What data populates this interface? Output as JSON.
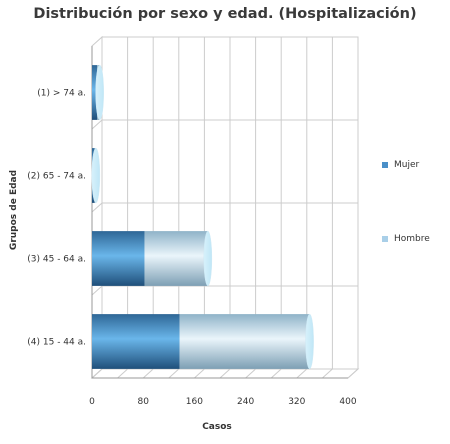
{
  "chart_data": {
    "type": "bar",
    "orientation": "horizontal",
    "stacked": true,
    "style": "3d-cylinder",
    "title": "Distribución por sexo y edad. (Hospitalización)",
    "xlabel": "Casos",
    "ylabel": "Grupos de Edad",
    "categories": [
      "(1) > 74 a.",
      "(2) 65 - 74 a.",
      "(3) 45 - 64 a.",
      "(4) 15 - 44 a."
    ],
    "series": [
      {
        "name": "Mujer",
        "values": [
          8,
          4,
          82,
          137
        ],
        "color": "#4a8fc8"
      },
      {
        "name": "Hombre",
        "values": [
          4,
          2,
          99,
          203
        ],
        "color": "#a9c8dc"
      }
    ],
    "xlim": [
      0,
      400
    ],
    "xticks": [
      "0",
      "80",
      "160",
      "240",
      "320",
      "400"
    ],
    "xtick_values": [
      0,
      80,
      160,
      240,
      320,
      400
    ],
    "grid": true,
    "legend_position": "right"
  }
}
